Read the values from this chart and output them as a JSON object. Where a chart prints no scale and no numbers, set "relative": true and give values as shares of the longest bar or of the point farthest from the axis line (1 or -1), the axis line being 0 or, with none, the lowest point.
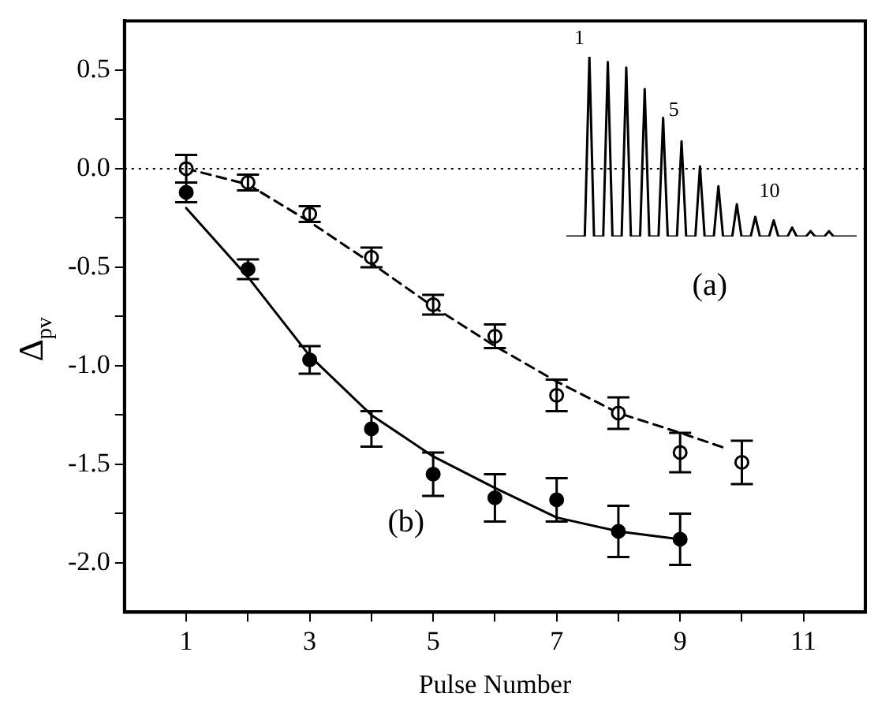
{
  "chart_data": [
    {
      "type": "scatter",
      "xlabel": "Pulse Number",
      "ylabel": "Δ$_{pv}$",
      "xlim": [
        0,
        12
      ],
      "ylim": [
        -2.25,
        0.75
      ],
      "xticks": [
        1,
        {
          "value": 2,
          "label": null
        },
        3,
        {
          "value": 4,
          "label": null
        },
        5,
        {
          "value": 6,
          "label": null
        },
        7,
        {
          "value": 8,
          "label": null
        },
        9,
        {
          "value": 10,
          "label": null
        },
        11
      ],
      "yticks": [
        {
          "value": 0.5,
          "label": "0.5"
        },
        {
          "value": 0.25,
          "label": null
        },
        {
          "value": 0,
          "label": "0.0"
        },
        {
          "value": -0.25,
          "label": null
        },
        {
          "value": -0.5,
          "label": "-0.5"
        },
        {
          "value": -0.75,
          "label": null
        },
        {
          "value": -1,
          "label": "-1.0"
        },
        {
          "value": -1.25,
          "label": null
        },
        {
          "value": -1.5,
          "label": "-1.5"
        },
        {
          "value": -1.75,
          "label": null
        },
        {
          "value": -2,
          "label": "-2.0"
        }
      ],
      "grid": false,
      "legend": false,
      "marker": "circle",
      "series": [
        {
          "type": "scatter",
          "color": "#ffffff",
          "x": [
            1,
            2,
            3,
            4,
            5,
            6,
            7,
            8,
            9,
            10
          ],
          "values": [
            0.0,
            -0.07,
            -0.23,
            -0.45,
            -0.69,
            -0.85,
            -1.15,
            -1.24,
            -1.44,
            -1.49
          ],
          "errors": [
            0.07,
            0.04,
            0.04,
            0.05,
            0.05,
            0.06,
            0.08,
            0.08,
            0.1,
            0.11
          ]
        },
        {
          "type": "scatter",
          "color": "#000000",
          "x": [
            1,
            2,
            3,
            4,
            5,
            6,
            7,
            8,
            9
          ],
          "values": [
            -0.12,
            -0.51,
            -0.97,
            -1.32,
            -1.55,
            -1.67,
            -1.68,
            -1.84,
            -1.88
          ],
          "errors": [
            0.05,
            0.05,
            0.07,
            0.09,
            0.11,
            0.12,
            0.11,
            0.13,
            0.13
          ]
        },
        {
          "type": "line",
          "color": "#000000",
          "line_style": "dashed",
          "marker": "none",
          "x": [
            1,
            2,
            3,
            4,
            5,
            6,
            7,
            8,
            9,
            9.75
          ],
          "values": [
            0.0,
            -0.08,
            -0.27,
            -0.48,
            -0.7,
            -0.9,
            -1.08,
            -1.24,
            -1.34,
            -1.42
          ]
        },
        {
          "type": "line",
          "color": "#000000",
          "line_style": "solid",
          "marker": "none",
          "x": [
            1,
            2,
            3,
            4,
            5,
            6,
            7,
            8,
            9
          ],
          "values": [
            -0.2,
            -0.55,
            -0.95,
            -1.25,
            -1.46,
            -1.62,
            -1.77,
            -1.84,
            -1.88
          ]
        }
      ],
      "ref_lines": [
        {
          "axis": "y",
          "value": 0,
          "line_style": "dotted",
          "color": "#000000"
        }
      ],
      "annotations": [
        "(a)",
        "(b)"
      ]
    },
    {
      "type": "line",
      "relative": true,
      "legend": false,
      "marker": "none",
      "categories": [
        null,
        null,
        null,
        null,
        null,
        null,
        null,
        null,
        null,
        null,
        null,
        null,
        null,
        null,
        null,
        null,
        null,
        null,
        null,
        null,
        null,
        null,
        null,
        null,
        null,
        null,
        null,
        null,
        null,
        null,
        null,
        null,
        null,
        null,
        null,
        null,
        null,
        null,
        null,
        null,
        null,
        null,
        null,
        null,
        null,
        null,
        null,
        null,
        null,
        null,
        null,
        null,
        null,
        null,
        null,
        null,
        null,
        null,
        null,
        null,
        null,
        null,
        null,
        null
      ],
      "series": [
        {
          "color": "#000000",
          "values": [
            0,
            0,
            0,
            0,
            0,
            1,
            0,
            0,
            0,
            0.97,
            0,
            0,
            0,
            0.94,
            0,
            0,
            0,
            0.82,
            0,
            0,
            0,
            0.66,
            0,
            0,
            0,
            0.53,
            0,
            0,
            0,
            0.39,
            0,
            0,
            0,
            0.28,
            0,
            0,
            0,
            0.18,
            0,
            0,
            0,
            0.11,
            0,
            0,
            0,
            0.09,
            0,
            0,
            0,
            0.05,
            0,
            0,
            0,
            0.03,
            0,
            0,
            0,
            0.03,
            0,
            0,
            0,
            0,
            0,
            0
          ]
        }
      ],
      "annotations": [
        "1",
        "5",
        "10"
      ]
    }
  ]
}
